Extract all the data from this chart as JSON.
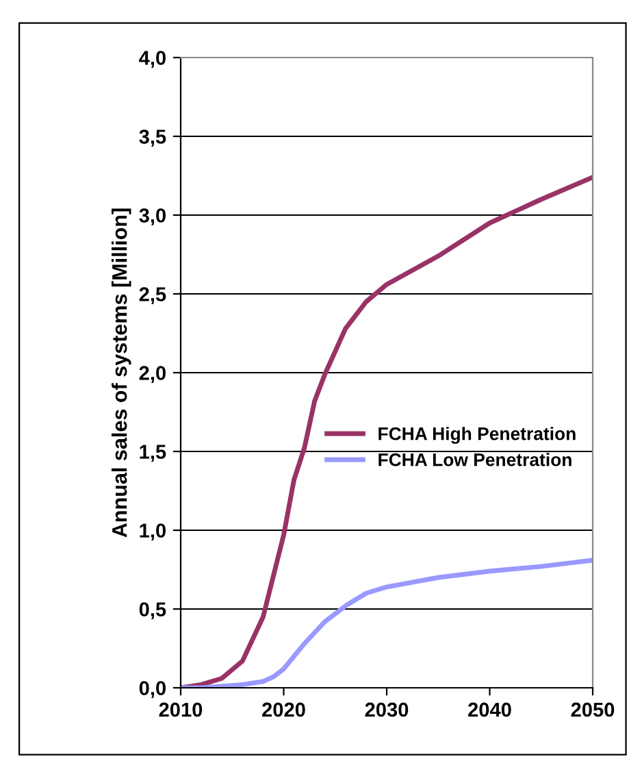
{
  "chart_data": {
    "type": "line",
    "ylabel": "Annual sales of systems [Million]",
    "x": [
      2010,
      2012,
      2014,
      2016,
      2018,
      2019,
      2020,
      2021,
      2022,
      2023,
      2024,
      2026,
      2028,
      2030,
      2035,
      2040,
      2045,
      2050
    ],
    "series": [
      {
        "name": "FCHA High Penetration",
        "color": "#993366",
        "values": [
          0.0,
          0.02,
          0.06,
          0.17,
          0.45,
          0.71,
          0.97,
          1.32,
          1.52,
          1.82,
          1.99,
          2.28,
          2.45,
          2.56,
          2.74,
          2.95,
          3.1,
          3.24
        ]
      },
      {
        "name": "FCHA Low Penetration",
        "color": "#9999ff",
        "values": [
          0.0,
          0.0,
          0.01,
          0.02,
          0.04,
          0.07,
          0.12,
          0.2,
          0.28,
          0.35,
          0.42,
          0.52,
          0.6,
          0.64,
          0.7,
          0.74,
          0.77,
          0.81
        ]
      }
    ],
    "xlim": [
      2010,
      2050
    ],
    "xticks": [
      2010,
      2020,
      2030,
      2040,
      2050
    ],
    "ylim": [
      0,
      4
    ],
    "yticks": [
      {
        "value": 0,
        "label": "0,0"
      },
      {
        "value": 0.5,
        "label": "0,5"
      },
      {
        "value": 1,
        "label": "1,0"
      },
      {
        "value": 1.5,
        "label": "1,5"
      },
      {
        "value": 2,
        "label": "2,0"
      },
      {
        "value": 2.5,
        "label": "2,5"
      },
      {
        "value": 3,
        "label": "3,0"
      },
      {
        "value": 3.5,
        "label": "3,5"
      },
      {
        "value": 4,
        "label": "4,0"
      }
    ],
    "grid": "y",
    "legend": "right",
    "marker": "none",
    "line_style": "solid"
  }
}
